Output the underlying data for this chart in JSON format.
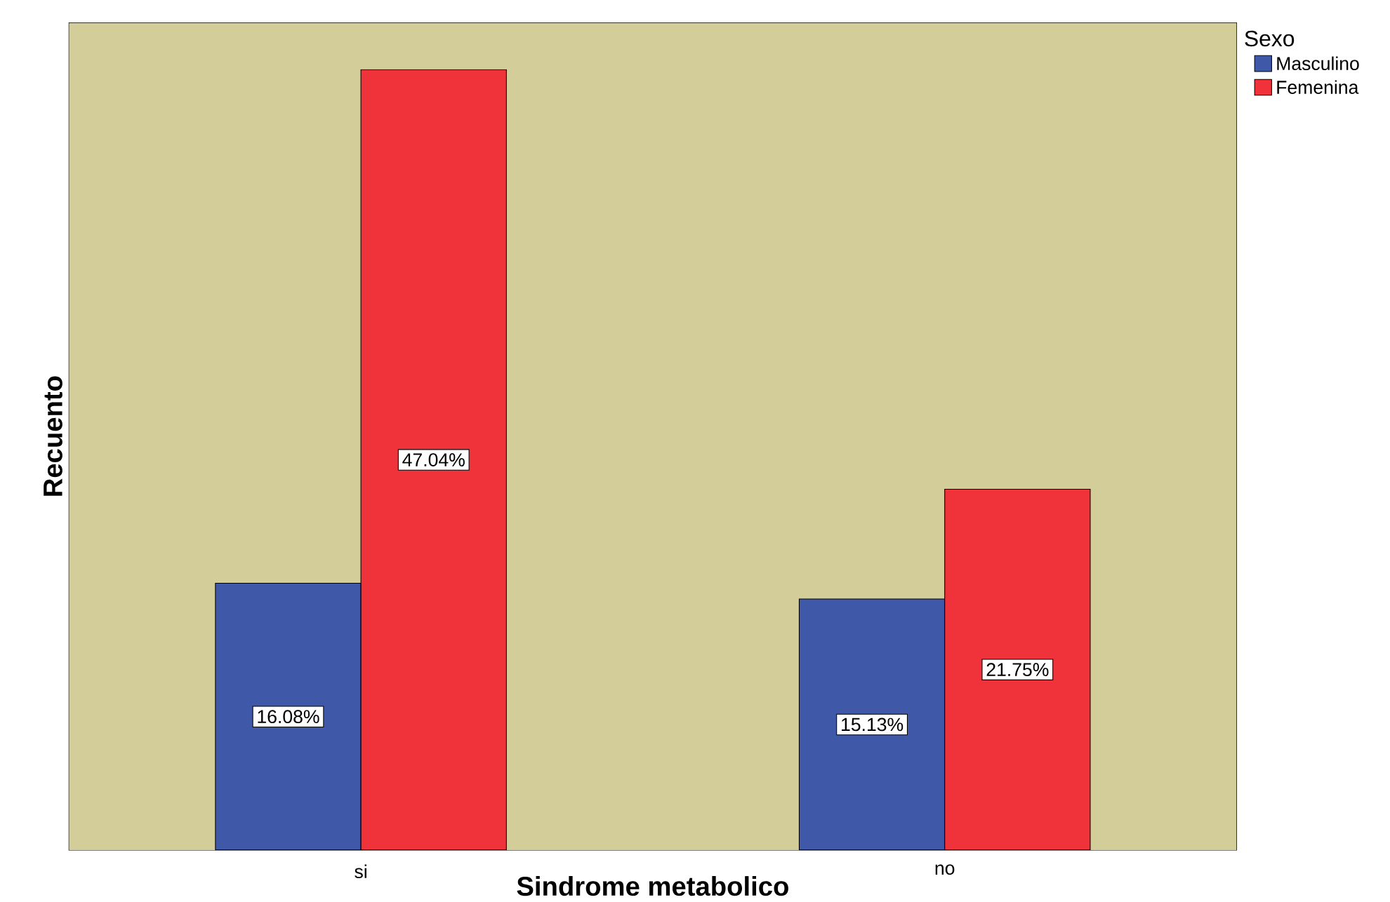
{
  "chart_data": {
    "type": "bar",
    "xlabel": "Sindrome metabolico",
    "ylabel": "Recuento",
    "legend_title": "Sexo",
    "legend": "top right",
    "categories": [
      "si",
      "no"
    ],
    "series": [
      {
        "name": "Masculino",
        "color": "#3f58a8",
        "values": [
          16.08,
          15.13
        ],
        "value_labels": [
          "16.08%",
          "15.13%"
        ]
      },
      {
        "name": "Femenina",
        "color": "#f0323a",
        "values": [
          47.04,
          21.75
        ],
        "value_labels": [
          "47.04%",
          "21.75%"
        ]
      }
    ]
  }
}
